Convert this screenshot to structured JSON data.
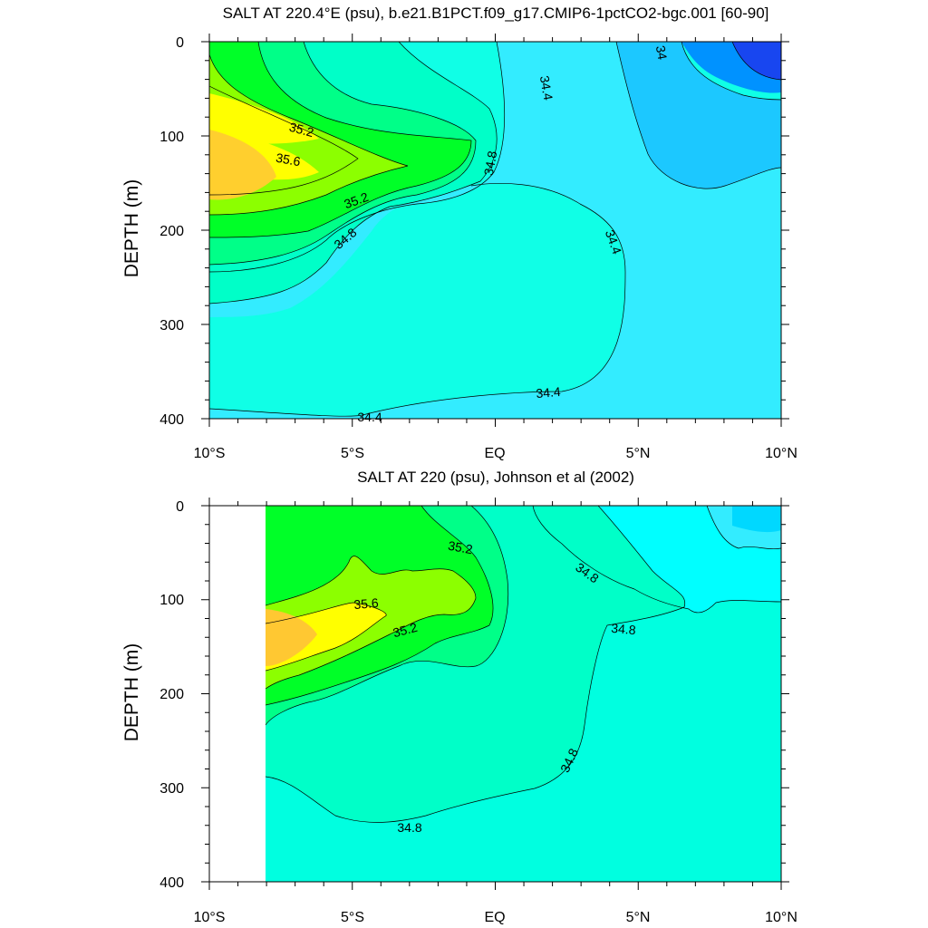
{
  "chart_data": [
    {
      "type": "contour",
      "title": "SALT AT 220.4°E (psu), b.e21.B1PCT.f09_g17.CMIP6-1pctCO2-bgc.001 [60-90]",
      "ylabel": "DEPTH (m)",
      "xlabel": "",
      "x_ticks": [
        "10°S",
        "5°S",
        "EQ",
        "5°N",
        "10°N"
      ],
      "y_ticks": [
        "0",
        "100",
        "200",
        "300",
        "400"
      ],
      "xlim": [
        -10,
        10
      ],
      "ylim": [
        0,
        400
      ],
      "contour_labels": [
        "35.2",
        "35.6",
        "35.2",
        "34.8",
        "34.8",
        "34.4",
        "34.4",
        "34.4",
        "34.4",
        "34"
      ],
      "colors": {
        "max": "#ffcf2e",
        "yellow": "#ffff00",
        "lime": "#8cff00",
        "green": "#00ff28",
        "spring": "#00ff88",
        "aqua_green": "#00ffc8",
        "aqua": "#10ffe6",
        "cyan": "#33ecff",
        "sky": "#1cc8ff",
        "blue": "#0092ff",
        "deep_blue": "#1846f0"
      }
    },
    {
      "type": "contour",
      "title": "SALT AT 220 (psu), Johnson et al (2002)",
      "ylabel": "DEPTH (m)",
      "xlabel": "",
      "x_ticks": [
        "10°S",
        "5°S",
        "EQ",
        "5°N",
        "10°N"
      ],
      "y_ticks": [
        "0",
        "100",
        "200",
        "300",
        "400"
      ],
      "xlim": [
        -10,
        10
      ],
      "ylim": [
        0,
        400
      ],
      "contour_labels": [
        "35.2",
        "35.6",
        "35.2",
        "34.8",
        "34.8",
        "34.8",
        "34.8"
      ],
      "colors": {
        "max": "#ffc832",
        "yellow": "#ffff00",
        "lime": "#8cff00",
        "green": "#00ff28",
        "spring": "#00ff88",
        "aqua_green": "#00ffc8",
        "aqua": "#00ffe0",
        "cyan": "#00ffff",
        "sky": "#33ecff",
        "blue": "#00d8ff"
      }
    }
  ]
}
